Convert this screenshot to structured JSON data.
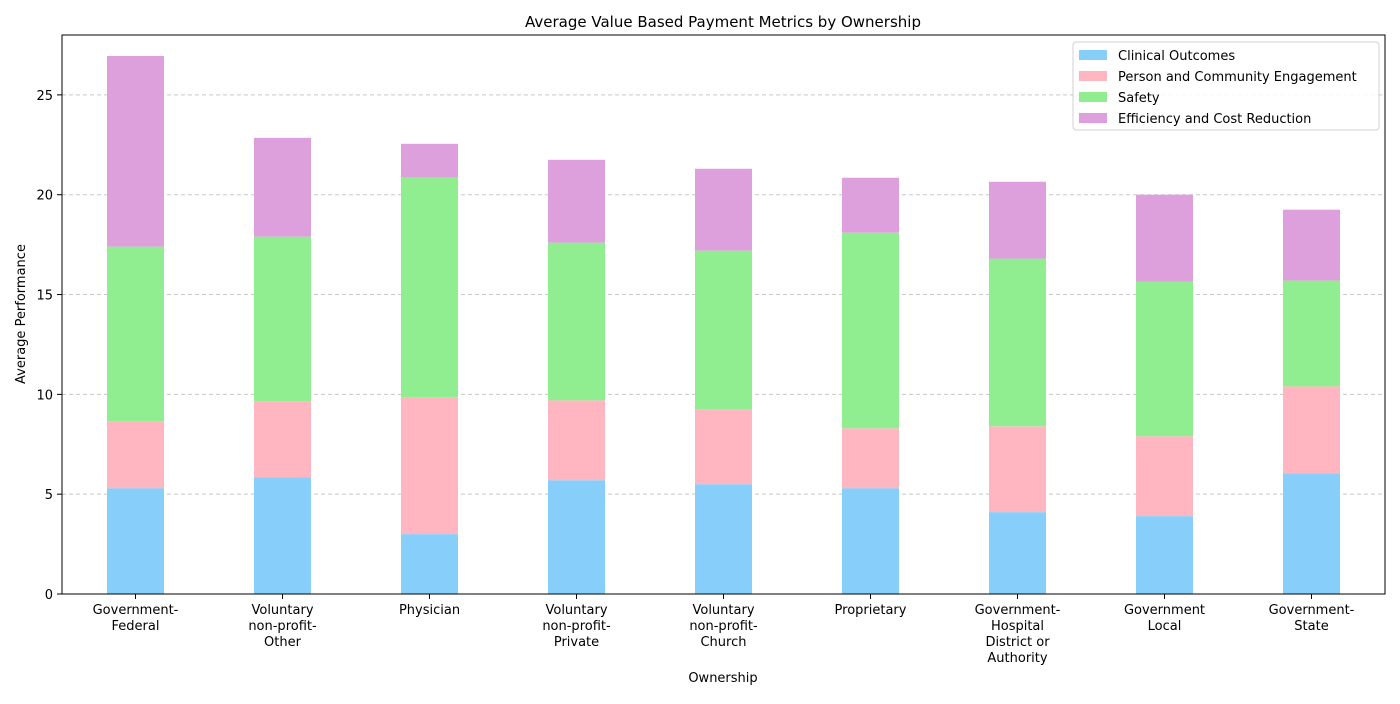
{
  "chart_data": {
    "type": "bar",
    "stacked": true,
    "title": "Average Value Based Payment Metrics by Ownership",
    "xlabel": "Ownership",
    "ylabel": "Average Performance",
    "ylim": [
      0,
      28
    ],
    "yticks": [
      0,
      5,
      10,
      15,
      20,
      25
    ],
    "grid": "y-dashed",
    "legend_position": "top-right",
    "categories": [
      [
        "Government-",
        "Federal"
      ],
      [
        "Voluntary",
        "non-profit-",
        "Other"
      ],
      [
        "Physician"
      ],
      [
        "Voluntary",
        "non-profit-",
        "Private"
      ],
      [
        "Voluntary",
        "non-profit-",
        "Church"
      ],
      [
        "Proprietary"
      ],
      [
        "Government-",
        "Hospital",
        "District or",
        "Authority"
      ],
      [
        "Government",
        "Local"
      ],
      [
        "Government-",
        "State"
      ]
    ],
    "series": [
      {
        "name": "Clinical Outcomes",
        "color": "#87CEFA",
        "values": [
          5.3,
          5.85,
          3.0,
          5.7,
          5.5,
          5.3,
          4.1,
          3.9,
          6.05
        ]
      },
      {
        "name": "Person and Community Engagement",
        "color": "#FFB6C1",
        "values": [
          3.35,
          3.8,
          6.85,
          4.0,
          3.75,
          3.0,
          4.3,
          4.0,
          4.35
        ]
      },
      {
        "name": "Safety",
        "color": "#90EE90",
        "values": [
          8.75,
          8.25,
          11.0,
          7.9,
          7.95,
          9.8,
          8.4,
          7.75,
          5.3
        ]
      },
      {
        "name": "Efficiency and Cost Reduction",
        "color": "#DDA0DD",
        "values": [
          9.55,
          4.95,
          1.7,
          4.15,
          4.1,
          2.75,
          3.85,
          4.35,
          3.55
        ]
      }
    ]
  }
}
